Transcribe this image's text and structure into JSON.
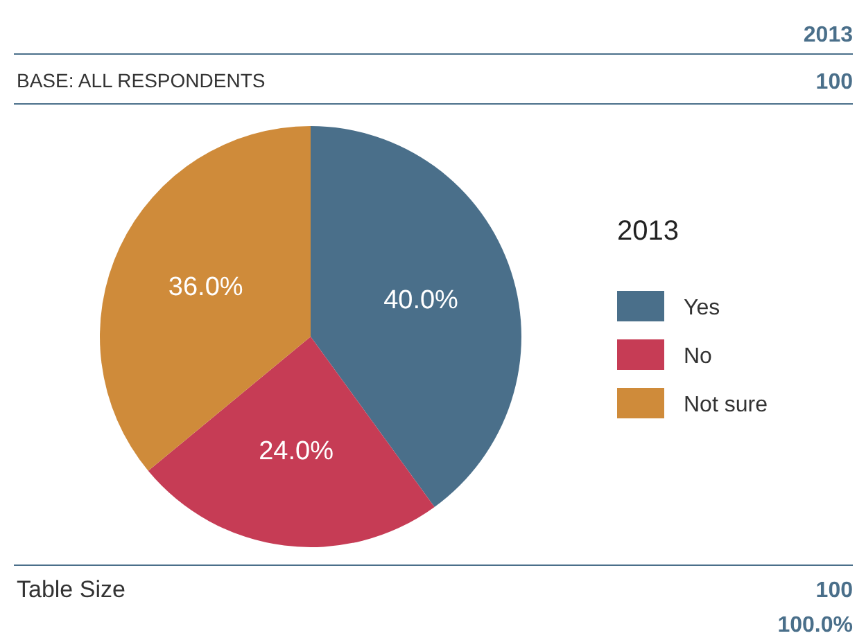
{
  "chart_data": {
    "type": "pie",
    "categories": [
      "Yes",
      "No",
      "Not sure"
    ],
    "values": [
      40,
      24,
      36
    ],
    "colors": [
      "#4a6f8a",
      "#c63c55",
      "#cf8b3a"
    ],
    "value_labels": [
      "40.0%",
      "24.0%",
      "36.0%"
    ],
    "legend": "right",
    "legend_title": "2013",
    "annotations": [
      "2013",
      "BASE: ALL RESPONDENTS",
      "100",
      "Table Size",
      "100",
      "100.0%"
    ]
  }
}
